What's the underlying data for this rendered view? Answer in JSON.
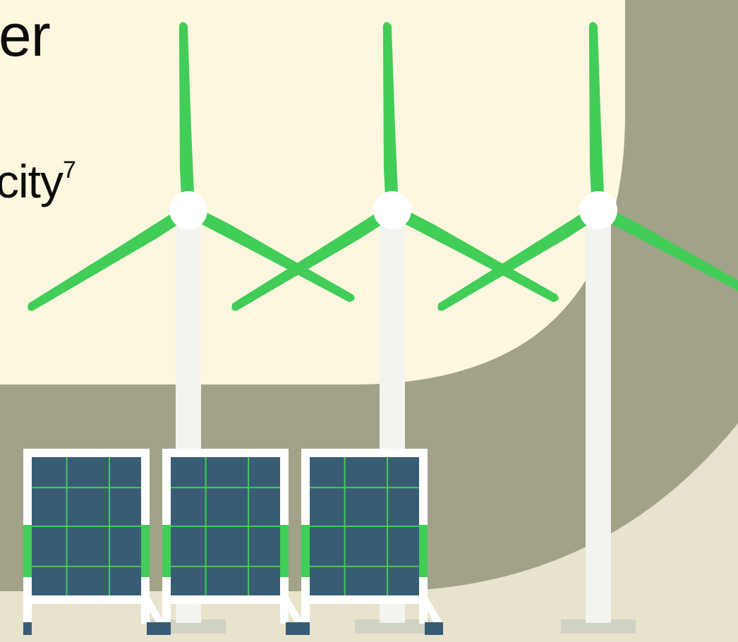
{
  "slide": {
    "heading_fragment": "er",
    "body_fragment": "city",
    "footnote_marker": "7"
  },
  "colors": {
    "panel_cream": "#fdf7e0",
    "background_olive": "#a2a289",
    "ground_beige": "#e8e3cd",
    "turbine_blade_green": "#41cd58",
    "turbine_tower": "#f3f3ef",
    "turbine_base": "#d1d2c3",
    "solar_cell_navy": "#395c75",
    "solar_grid_green": "#41cd58",
    "solar_frame": "#ffffff"
  },
  "illustration": {
    "wind_turbine_count": 3,
    "solar_panel_count": 3,
    "solar_panel_grid": {
      "columns": 3,
      "rows": 4
    }
  }
}
